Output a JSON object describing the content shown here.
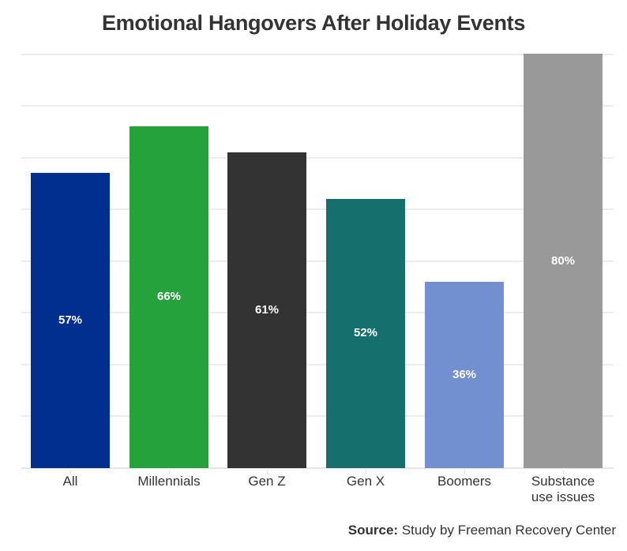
{
  "title": "Emotional Hangovers After Holiday Events",
  "source": {
    "label": "Source:",
    "text": " Study by Freeman Recovery Center"
  },
  "chart_data": {
    "type": "bar",
    "title": "Emotional Hangovers After Holiday Events",
    "categories": [
      "All",
      "Millennials",
      "Gen Z",
      "Gen X",
      "Boomers",
      "Substance use issues"
    ],
    "values": [
      57,
      66,
      61,
      52,
      36,
      80
    ],
    "labels": [
      "57%",
      "66%",
      "61%",
      "52%",
      "36%",
      "80%"
    ],
    "colors": [
      "#012f8f",
      "#25a23b",
      "#333333",
      "#146f6d",
      "#7290cf",
      "#999999"
    ],
    "xlabel": "",
    "ylabel": "",
    "ylim": [
      0,
      80
    ],
    "grid": true,
    "legend": "none",
    "source": "Source: Study by Freeman Recovery Center"
  },
  "categories_display": [
    {
      "line1": "All",
      "line2": ""
    },
    {
      "line1": "Millennials",
      "line2": ""
    },
    {
      "line1": "Gen Z",
      "line2": ""
    },
    {
      "line1": "Gen X",
      "line2": ""
    },
    {
      "line1": "Boomers",
      "line2": ""
    },
    {
      "line1": "Substance",
      "line2": "use issues"
    }
  ]
}
